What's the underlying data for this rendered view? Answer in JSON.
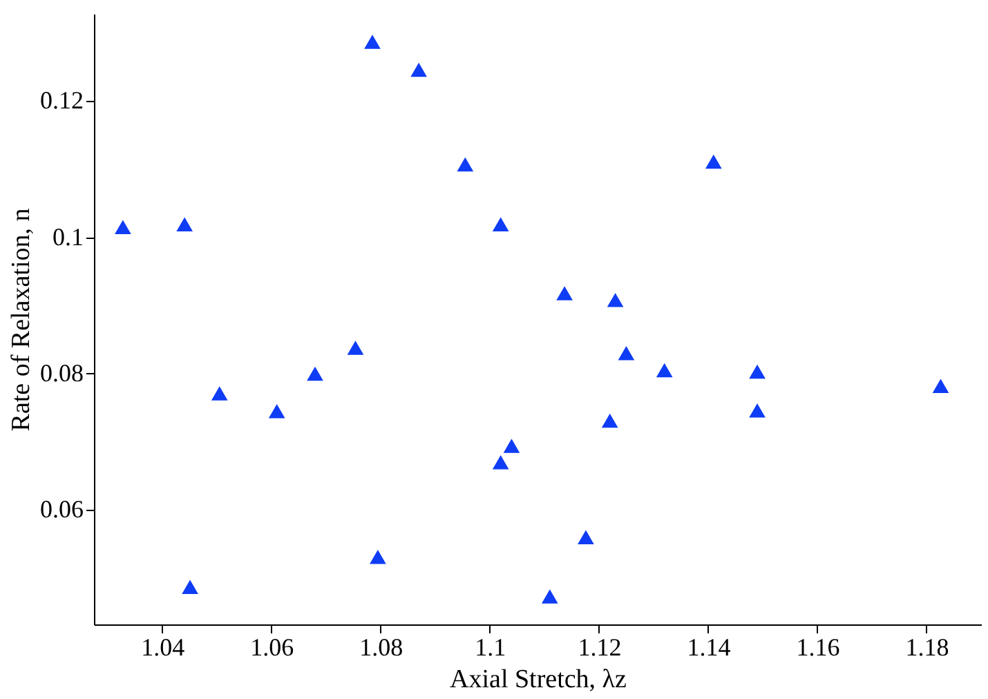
{
  "chart_data": {
    "type": "scatter",
    "xlabel": "Axial Stretch, λz",
    "ylabel": "Rate of Relaxation, n",
    "xlim": [
      1.0275,
      1.19
    ],
    "ylim": [
      0.0432,
      0.1328
    ],
    "xticks": [
      1.04,
      1.06,
      1.08,
      1.1,
      1.12,
      1.14,
      1.16,
      1.18
    ],
    "yticks": [
      0.06,
      0.08,
      0.1,
      0.12
    ],
    "grid": false,
    "marker": "triangle",
    "series": [
      {
        "color": "#0f3cf5",
        "x": [
          1.0328,
          1.0441,
          1.0451,
          1.0505,
          1.061,
          1.068,
          1.0754,
          1.0785,
          1.0795,
          1.087,
          1.0955,
          1.102,
          1.102,
          1.104,
          1.111,
          1.1137,
          1.1176,
          1.122,
          1.123,
          1.125,
          1.132,
          1.141,
          1.149,
          1.149,
          1.1826
        ],
        "values": [
          0.1015,
          0.1019,
          0.0487,
          0.0771,
          0.0745,
          0.08,
          0.0838,
          0.1287,
          0.0531,
          0.1246,
          0.1107,
          0.1019,
          0.067,
          0.0694,
          0.0473,
          0.0918,
          0.056,
          0.0731,
          0.0908,
          0.083,
          0.0805,
          0.1111,
          0.0803,
          0.0746,
          0.0782
        ]
      }
    ]
  }
}
